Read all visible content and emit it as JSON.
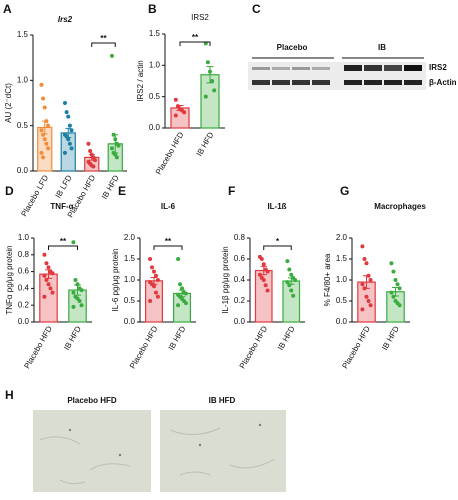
{
  "chart_data": [
    {
      "type": "bar",
      "panel": "A",
      "title": "Irs2",
      "ylabel": "AU (2⁻dCt)",
      "categories": [
        "Placebo LFD",
        "IB LFD",
        "Placebo HFD",
        "IB HFD"
      ],
      "colors": [
        "#f28c38",
        "#1c7fa3",
        "#e0393e",
        "#3aab3f"
      ],
      "values": [
        0.48,
        0.42,
        0.15,
        0.3
      ],
      "errors": [
        0.07,
        0.05,
        0.03,
        0.1
      ],
      "points": [
        [
          0.95,
          0.8,
          0.7,
          0.55,
          0.5,
          0.45,
          0.4,
          0.35,
          0.3,
          0.25,
          0.2,
          0.15
        ],
        [
          0.75,
          0.65,
          0.6,
          0.5,
          0.45,
          0.4,
          0.38,
          0.35,
          0.3,
          0.25,
          0.2
        ],
        [
          0.3,
          0.22,
          0.18,
          0.15,
          0.12,
          0.1,
          0.08,
          0.06,
          0.05
        ],
        [
          1.27,
          0.4,
          0.35,
          0.3,
          0.28,
          0.25,
          0.2,
          0.18,
          0.15
        ]
      ],
      "ylim": [
        0,
        1.5
      ],
      "yticks": [
        {
          "value": 0,
          "label": "0.0"
        },
        0.5,
        {
          "value": 1,
          "label": "1.0"
        },
        1.5
      ],
      "significance": [
        {
          "label": "**",
          "between": [
            "Placebo HFD",
            "IB HFD"
          ]
        }
      ]
    },
    {
      "type": "bar",
      "panel": "B",
      "title": "IRS2",
      "ylabel": "IRS2 / actin",
      "categories": [
        "Placebo HFD",
        "IB HFD"
      ],
      "colors": [
        "#e0393e",
        "#3aab3f"
      ],
      "values": [
        0.32,
        0.85
      ],
      "errors": [
        0.04,
        0.13
      ],
      "points": [
        [
          0.45,
          0.35,
          0.3,
          0.28,
          0.25,
          0.2
        ],
        [
          1.35,
          1.05,
          0.9,
          0.75,
          0.6,
          0.5
        ]
      ],
      "ylim": [
        0,
        1.5
      ],
      "yticks": [
        {
          "value": 0,
          "label": "0.0"
        },
        0.5,
        {
          "value": 1,
          "label": "1.0"
        },
        1.5
      ],
      "significance": [
        {
          "label": "**",
          "between": [
            "Placebo HFD",
            "IB HFD"
          ]
        }
      ]
    },
    {
      "type": "bar",
      "panel": "D",
      "title": "TNF-α",
      "ylabel": "TNFα pg/μg protein",
      "categories": [
        "Placebo HFD",
        "IB HFD"
      ],
      "colors": [
        "#e0393e",
        "#3aab3f"
      ],
      "values": [
        0.57,
        0.38
      ],
      "errors": [
        0.05,
        0.06
      ],
      "points": [
        [
          0.8,
          0.7,
          0.65,
          0.6,
          0.58,
          0.55,
          0.5,
          0.45,
          0.4,
          0.35,
          0.3
        ],
        [
          0.95,
          0.5,
          0.45,
          0.4,
          0.38,
          0.35,
          0.3,
          0.28,
          0.25,
          0.2,
          0.18
        ]
      ],
      "ylim": [
        0,
        1
      ],
      "yticks": [
        {
          "value": 0,
          "label": "0.0"
        },
        0.2,
        0.4,
        0.6,
        0.8,
        {
          "value": 1,
          "label": "1.0"
        }
      ],
      "significance": [
        {
          "label": "**",
          "between": [
            "Placebo HFD",
            "IB HFD"
          ]
        }
      ]
    },
    {
      "type": "bar",
      "panel": "E",
      "title": "IL-6",
      "ylabel": "IL-6 pg/μg protein",
      "categories": [
        "Placebo HFD",
        "IB HFD"
      ],
      "colors": [
        "#e0393e",
        "#3aab3f"
      ],
      "values": [
        0.98,
        0.68
      ],
      "errors": [
        0.08,
        0.08
      ],
      "points": [
        [
          1.5,
          1.3,
          1.2,
          1.1,
          1.0,
          0.95,
          0.9,
          0.85,
          0.7,
          0.6,
          0.5
        ],
        [
          1.5,
          0.9,
          0.8,
          0.7,
          0.68,
          0.65,
          0.6,
          0.55,
          0.5,
          0.45,
          0.4
        ]
      ],
      "ylim": [
        0,
        2
      ],
      "yticks": [
        {
          "value": 0,
          "label": "0.0"
        },
        0.5,
        {
          "value": 1,
          "label": "1.0"
        },
        1.5,
        {
          "value": 2,
          "label": "2.0"
        }
      ],
      "significance": [
        {
          "label": "**",
          "between": [
            "Placebo HFD",
            "IB HFD"
          ]
        }
      ]
    },
    {
      "type": "bar",
      "panel": "F",
      "title": "IL-1ß",
      "ylabel": "IL-1β pg/μg protein",
      "categories": [
        "Placebo HFD",
        "IB HFD"
      ],
      "colors": [
        "#e0393e",
        "#3aab3f"
      ],
      "values": [
        0.49,
        0.39
      ],
      "errors": [
        0.04,
        0.03
      ],
      "points": [
        [
          0.62,
          0.6,
          0.55,
          0.5,
          0.48,
          0.45,
          0.42,
          0.4,
          0.35,
          0.3
        ],
        [
          0.58,
          0.5,
          0.45,
          0.42,
          0.4,
          0.38,
          0.35,
          0.3,
          0.25
        ]
      ],
      "ylim": [
        0,
        0.8
      ],
      "yticks": [
        {
          "value": 0,
          "label": "0.0"
        },
        0.2,
        0.4,
        0.6,
        0.8
      ],
      "significance": [
        {
          "label": "*",
          "between": [
            "Placebo HFD",
            "IB HFD"
          ]
        }
      ]
    },
    {
      "type": "bar",
      "panel": "G",
      "title": "Macrophages",
      "ylabel": "% F4/80+ area",
      "categories": [
        "Placebo HFD",
        "IB HFD"
      ],
      "colors": [
        "#e0393e",
        "#3aab3f"
      ],
      "values": [
        0.95,
        0.72
      ],
      "errors": [
        0.15,
        0.1
      ],
      "points": [
        [
          1.8,
          1.5,
          1.4,
          1.1,
          1.0,
          0.9,
          0.8,
          0.6,
          0.5,
          0.4,
          0.3
        ],
        [
          1.4,
          1.2,
          1.0,
          0.9,
          0.8,
          0.7,
          0.6,
          0.5,
          0.45,
          0.4
        ]
      ],
      "ylim": [
        0,
        2
      ],
      "yticks": [
        {
          "value": 0,
          "label": "0.0"
        },
        0.5,
        {
          "value": 1,
          "label": "1.0"
        },
        1.5,
        {
          "value": 2,
          "label": "2.0"
        }
      ],
      "significance": []
    }
  ],
  "blot": {
    "panel": "C",
    "groups": [
      "Placebo",
      "IB"
    ],
    "bands": [
      "IRS2",
      "β-Actin"
    ]
  },
  "micrographs": {
    "panel": "H",
    "labels": [
      "Placebo HFD",
      "IB HFD"
    ]
  }
}
